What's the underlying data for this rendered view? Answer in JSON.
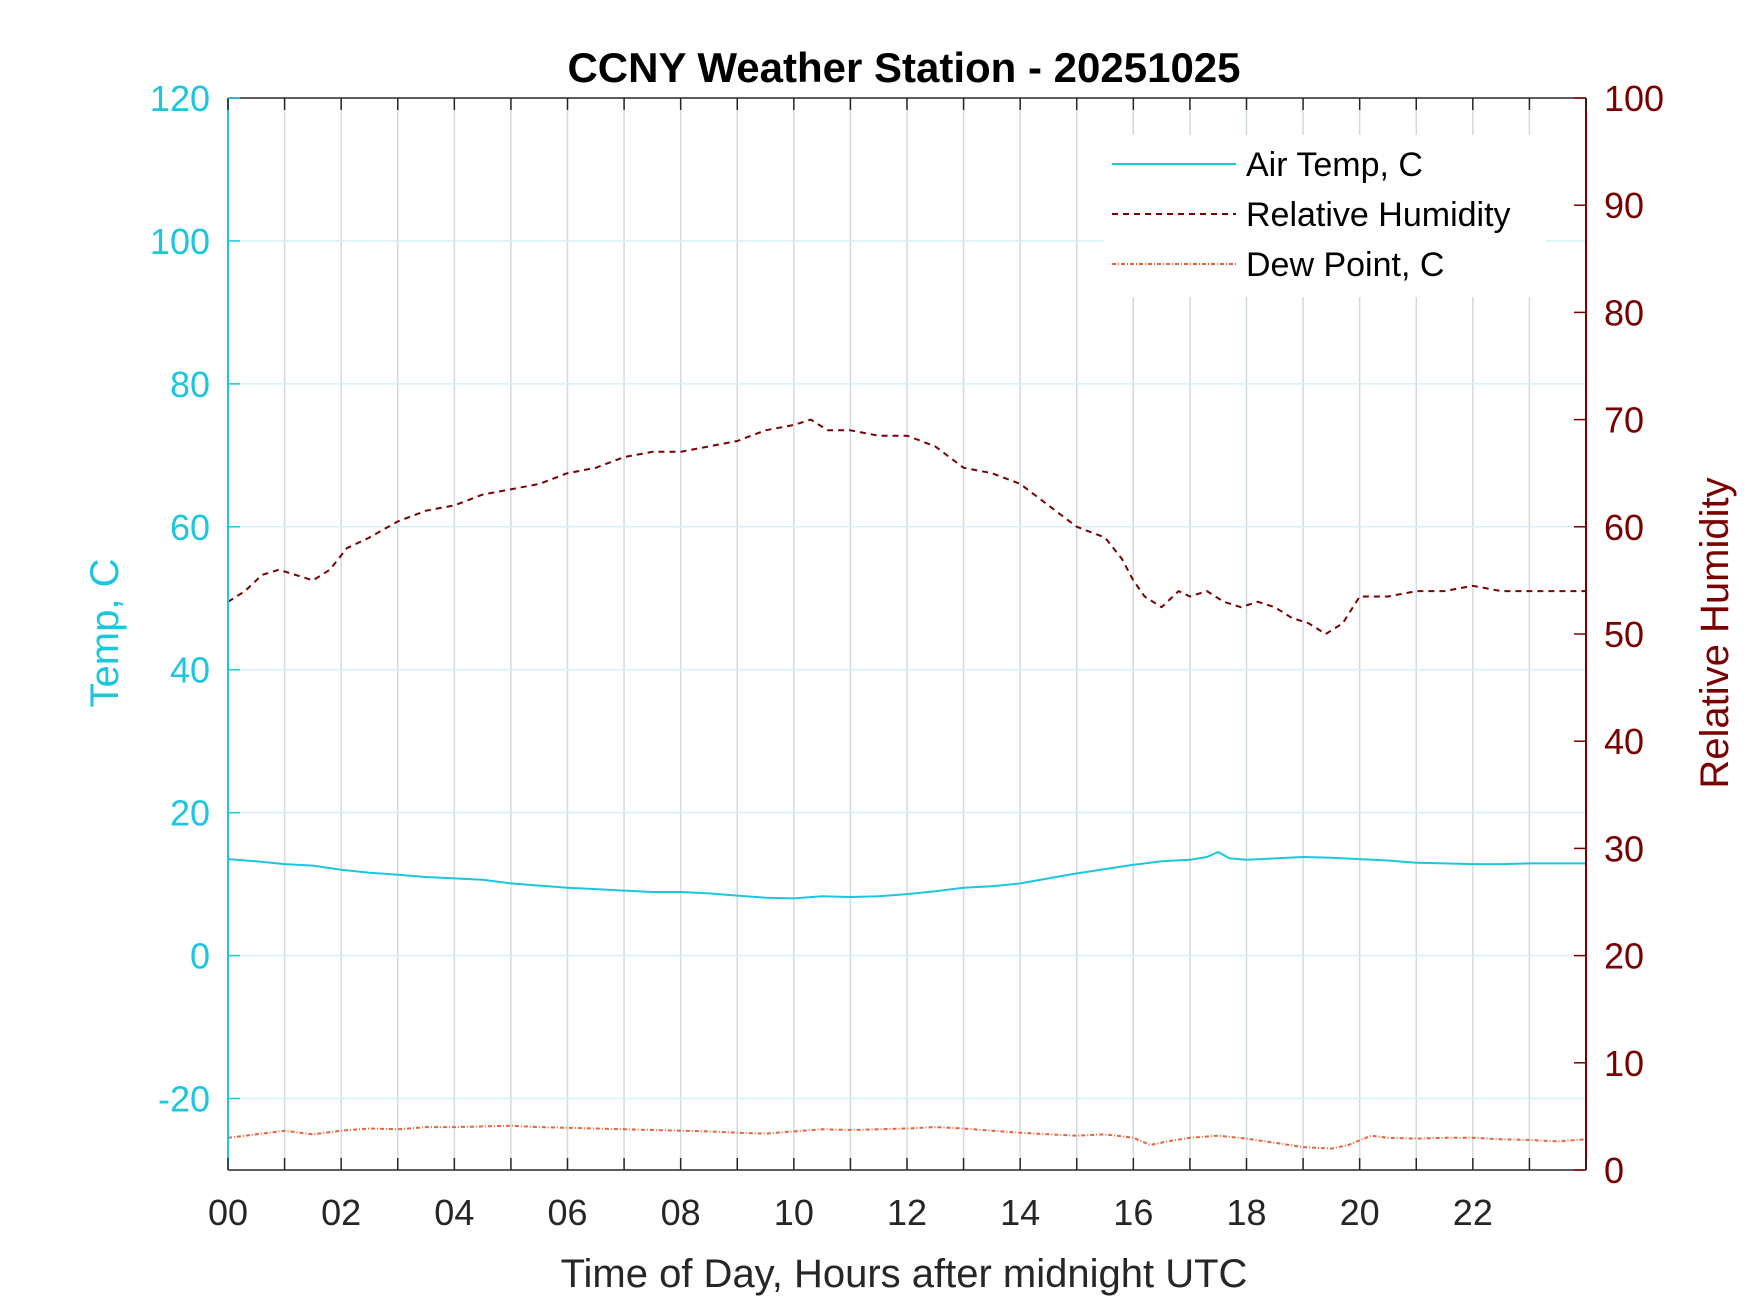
{
  "chart_data": {
    "type": "line",
    "title": "CCNY Weather Station - 20251025",
    "xlabel": "Time of Day, Hours after midnight UTC",
    "ylabel_left": "Temp, C",
    "ylabel_right": "Relative Humidity",
    "xlim": [
      0,
      24
    ],
    "ylim_left": [
      -30,
      120
    ],
    "ylim_right": [
      0,
      100
    ],
    "x_ticks": [
      0,
      2,
      4,
      6,
      8,
      10,
      12,
      14,
      16,
      18,
      20,
      22
    ],
    "x_tick_labels": [
      "00",
      "02",
      "04",
      "06",
      "08",
      "10",
      "12",
      "14",
      "16",
      "18",
      "20",
      "22"
    ],
    "y_ticks_left": [
      -20,
      0,
      20,
      40,
      60,
      80,
      100,
      120
    ],
    "y_ticks_right": [
      0,
      10,
      20,
      30,
      40,
      50,
      60,
      70,
      80,
      90,
      100
    ],
    "grid": true,
    "legend_position": "top-right",
    "colors": {
      "temp": "#1bc6de",
      "rh": "#7a0000",
      "dew": "#e8633a",
      "left_axis": "#1bc6de",
      "right_axis": "#7a0000"
    },
    "series": [
      {
        "name": "Air Temp, C",
        "axis": "left",
        "style": "solid",
        "x": [
          0,
          0.5,
          1,
          1.5,
          2,
          2.5,
          3,
          3.5,
          4,
          4.5,
          5,
          5.5,
          6,
          6.5,
          7,
          7.5,
          8,
          8.5,
          9,
          9.5,
          10,
          10.5,
          11,
          11.5,
          12,
          12.5,
          13,
          13.5,
          14,
          14.5,
          15,
          15.5,
          16,
          16.5,
          17,
          17.3,
          17.5,
          17.7,
          18,
          18.5,
          19,
          19.5,
          20,
          20.5,
          21,
          21.5,
          22,
          22.5,
          23,
          23.5,
          24
        ],
        "y": [
          13.5,
          13.2,
          12.8,
          12.6,
          12.0,
          11.6,
          11.3,
          11.0,
          10.8,
          10.6,
          10.1,
          9.8,
          9.5,
          9.3,
          9.1,
          8.9,
          8.9,
          8.7,
          8.4,
          8.1,
          8.0,
          8.3,
          8.2,
          8.3,
          8.6,
          9.0,
          9.5,
          9.7,
          10.1,
          10.8,
          11.5,
          12.1,
          12.7,
          13.2,
          13.4,
          13.8,
          14.5,
          13.6,
          13.4,
          13.6,
          13.8,
          13.7,
          13.5,
          13.3,
          13.0,
          12.9,
          12.8,
          12.8,
          12.9,
          12.9,
          12.9
        ]
      },
      {
        "name": "Relative Humidity",
        "axis": "right",
        "style": "dashed",
        "x": [
          0,
          0.3,
          0.6,
          0.9,
          1.2,
          1.5,
          1.8,
          2.1,
          2.5,
          3.0,
          3.5,
          4.0,
          4.5,
          5.0,
          5.5,
          6.0,
          6.5,
          7.0,
          7.5,
          8.0,
          8.5,
          9.0,
          9.5,
          10.0,
          10.3,
          10.6,
          11.0,
          11.5,
          12.0,
          12.5,
          13.0,
          13.5,
          14.0,
          14.5,
          15.0,
          15.5,
          15.8,
          16.0,
          16.2,
          16.5,
          16.8,
          17.0,
          17.3,
          17.6,
          17.9,
          18.2,
          18.5,
          18.8,
          19.1,
          19.4,
          19.7,
          20.0,
          20.5,
          21.0,
          21.5,
          22.0,
          22.5,
          23.0,
          23.5,
          24.0
        ],
        "y": [
          53,
          54,
          55.5,
          56,
          55.5,
          55,
          56,
          58,
          59,
          60.5,
          61.5,
          62,
          63,
          63.5,
          64,
          65,
          65.5,
          66.5,
          67,
          67,
          67.5,
          68,
          69,
          69.5,
          70,
          69,
          69,
          68.5,
          68.5,
          67.5,
          65.5,
          65,
          64,
          62,
          60,
          59,
          57,
          55,
          53.5,
          52.5,
          54,
          53.5,
          54,
          53,
          52.5,
          53,
          52.5,
          51.5,
          51,
          50,
          51,
          53.5,
          53.5,
          54,
          54,
          54.5,
          54,
          54,
          54,
          54
        ]
      },
      {
        "name": "Dew Point, C",
        "axis": "left",
        "style": "dash-dot",
        "x": [
          0,
          0.5,
          1,
          1.5,
          2,
          2.5,
          3,
          3.5,
          4,
          4.5,
          5,
          5.5,
          6,
          6.5,
          7,
          7.5,
          8,
          8.5,
          9,
          9.5,
          10,
          10.5,
          11,
          11.5,
          12,
          12.5,
          13,
          13.5,
          14,
          14.5,
          15,
          15.5,
          16,
          16.3,
          16.6,
          17,
          17.5,
          18,
          18.5,
          19,
          19.5,
          19.8,
          20.2,
          20.5,
          21,
          21.5,
          22,
          22.5,
          23,
          23.5,
          24
        ],
        "y": [
          -25.5,
          -25,
          -24.5,
          -25,
          -24.5,
          -24.2,
          -24.3,
          -24,
          -24,
          -23.9,
          -23.8,
          -24,
          -24.1,
          -24.2,
          -24.3,
          -24.4,
          -24.5,
          -24.6,
          -24.8,
          -24.9,
          -24.6,
          -24.3,
          -24.4,
          -24.3,
          -24.2,
          -24.0,
          -24.2,
          -24.5,
          -24.8,
          -25.0,
          -25.2,
          -25.0,
          -25.5,
          -26.5,
          -26.0,
          -25.5,
          -25.2,
          -25.6,
          -26.2,
          -26.8,
          -27.0,
          -26.5,
          -25.2,
          -25.5,
          -25.6,
          -25.5,
          -25.5,
          -25.7,
          -25.8,
          -26.0,
          -25.7
        ]
      }
    ]
  }
}
